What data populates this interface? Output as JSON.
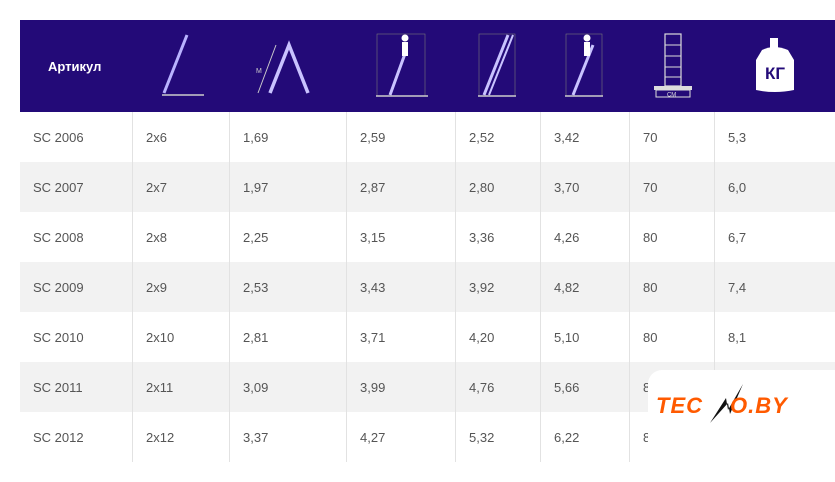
{
  "header": {
    "article_label": "Артикул",
    "icons": [
      "ladder-leaning-icon",
      "ladder-a-frame-icon",
      "ladder-working-height-icon",
      "ladder-extended-length-icon",
      "ladder-climber-height-icon",
      "ladder-base-width-icon",
      "weight-kg-icon"
    ],
    "cm_label": "СМ",
    "kg_label": "КГ"
  },
  "rows": [
    [
      "SC 2006",
      "2x6",
      "1,69",
      "2,59",
      "2,52",
      "3,42",
      "70",
      "5,3"
    ],
    [
      "SC 2007",
      "2x7",
      "1,97",
      "2,87",
      "2,80",
      "3,70",
      "70",
      "6,0"
    ],
    [
      "SC 2008",
      "2x8",
      "2,25",
      "3,15",
      "3,36",
      "4,26",
      "80",
      "6,7"
    ],
    [
      "SC 2009",
      "2x9",
      "2,53",
      "3,43",
      "3,92",
      "4,82",
      "80",
      "7,4"
    ],
    [
      "SC 2010",
      "2x10",
      "2,81",
      "3,71",
      "4,20",
      "5,10",
      "80",
      "8,1"
    ],
    [
      "SC 2011",
      "2x11",
      "3,09",
      "3,99",
      "4,76",
      "5,66",
      "80",
      ""
    ],
    [
      "SC 2012",
      "2x12",
      "3,37",
      "4,27",
      "5,32",
      "6,22",
      "80",
      ""
    ]
  ],
  "colors": {
    "header_bg": "#230a78",
    "logo_orange": "#ff5a00"
  },
  "watermark": {
    "text": "TECNO.BY"
  }
}
